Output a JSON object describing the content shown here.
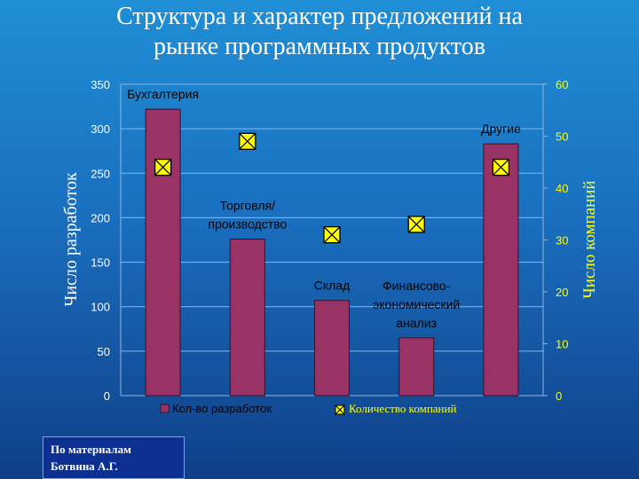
{
  "slide": {
    "title_line1": "Структура и характер предложений на",
    "title_line2": "рынке программных продуктов",
    "note_line1": "По материалам",
    "note_line2": "Ботвина А.Г."
  },
  "colors": {
    "bar": "#993366",
    "marker_fill": "#ffff00",
    "left_axis_text": "#ffffff",
    "right_axis_text": "#ffff00",
    "grid": "#8fb7de"
  },
  "chart_data": {
    "type": "bar",
    "categories": [
      [
        "Бухгалтерия"
      ],
      [
        "Торговля/",
        "производство"
      ],
      [
        "Склад"
      ],
      [
        "Финансово-",
        "экономический",
        "анализ"
      ],
      [
        "Другие"
      ]
    ],
    "series": [
      {
        "name": "Кол-во разработок",
        "axis": "left",
        "type": "bar",
        "values": [
          322,
          176,
          107,
          65,
          283
        ]
      },
      {
        "name": "Количество компаний",
        "axis": "right",
        "type": "marker",
        "values": [
          44,
          49,
          31,
          33,
          44
        ]
      }
    ],
    "ylabel_left": "Число разработок",
    "ylabel_right": "Число компаний",
    "ylim_left": [
      0,
      350
    ],
    "ylim_right": [
      0,
      60
    ],
    "yticks_left": [
      0,
      50,
      100,
      150,
      200,
      250,
      300,
      350
    ],
    "yticks_right": [
      0,
      10,
      20,
      30,
      40,
      50,
      60
    ],
    "grid": true,
    "legend_position": "bottom"
  }
}
